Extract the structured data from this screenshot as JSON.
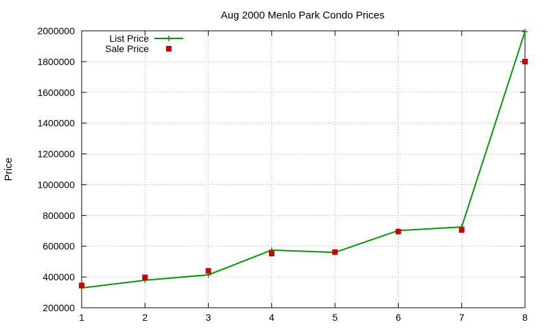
{
  "chart_data": {
    "type": "line",
    "title": "Aug 2000 Menlo Park Condo Prices",
    "xlabel": "",
    "ylabel": "Price",
    "x": [
      1,
      2,
      3,
      4,
      5,
      6,
      7,
      8
    ],
    "xlim": [
      1,
      8
    ],
    "ylim": [
      200000,
      2000000
    ],
    "xticks": [
      "1",
      "2",
      "3",
      "4",
      "5",
      "6",
      "7",
      "8"
    ],
    "yticks": [
      "200000",
      "400000",
      "600000",
      "800000",
      "1000000",
      "1200000",
      "1400000",
      "1600000",
      "1800000",
      "2000000"
    ],
    "grid": true,
    "legend_position": "top-left",
    "series": [
      {
        "name": "List Price",
        "style": "line-with-plus-markers",
        "color": "#009900",
        "values": [
          329000,
          379000,
          414000,
          575000,
          560000,
          702000,
          725000,
          1995000
        ]
      },
      {
        "name": "Sale Price",
        "style": "square-markers",
        "color": "#cc0000",
        "values": [
          345000,
          398000,
          440000,
          552000,
          562000,
          695000,
          705000,
          1800000
        ]
      }
    ]
  }
}
